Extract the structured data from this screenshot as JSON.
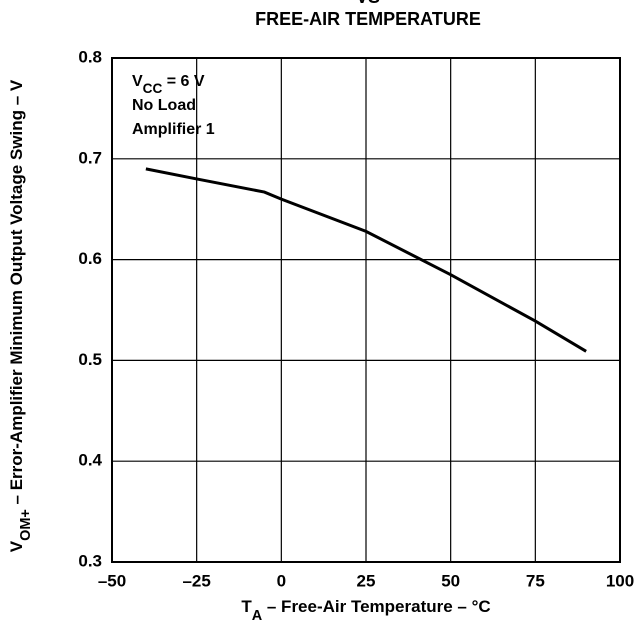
{
  "chart_data": {
    "type": "line",
    "title_top": "VS",
    "title": "FREE-AIR TEMPERATURE",
    "x_label": [
      "T",
      "A",
      " – Free-Air Temperature – °C"
    ],
    "y_label": [
      "V",
      "OM+",
      " – Error-Amplifier Minimum Output Voltage Swing – V"
    ],
    "annotations": [
      [
        "V",
        "CC",
        " = 6 V"
      ],
      [
        "No Load"
      ],
      [
        "Amplifier 1"
      ]
    ],
    "x": [
      -40,
      -25,
      -5,
      0,
      25,
      50,
      75,
      90
    ],
    "series": [
      {
        "color": "#000000",
        "values": [
          0.69,
          0.68,
          0.667,
          0.66,
          0.628,
          0.585,
          0.539,
          0.509
        ]
      }
    ],
    "xlim": [
      -50,
      100
    ],
    "xticks": [
      {
        "value": -50,
        "label": "–50"
      },
      {
        "value": -25,
        "label": "–25"
      },
      0,
      25,
      50,
      75,
      100
    ],
    "ylim": [
      0.3,
      0.8
    ],
    "yticks": [
      0.3,
      0.4,
      0.5,
      0.6,
      0.7,
      0.8
    ],
    "grid": true
  }
}
